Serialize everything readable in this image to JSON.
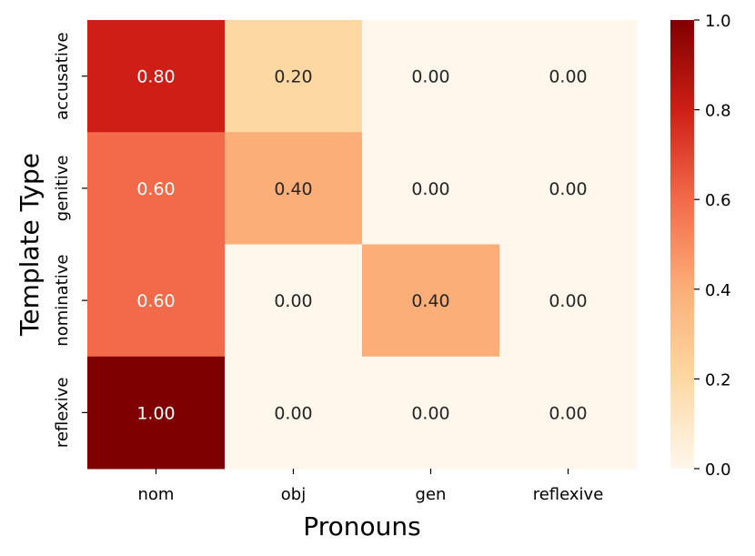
{
  "chart_data": {
    "type": "heatmap",
    "title": "",
    "xlabel": "Pronouns",
    "ylabel": "Template Type",
    "x_categories": [
      "nom",
      "obj",
      "gen",
      "reflexive"
    ],
    "y_categories": [
      "accusative",
      "genitive",
      "nominative",
      "reflexive"
    ],
    "values": [
      [
        0.8,
        0.2,
        0.0,
        0.0
      ],
      [
        0.6,
        0.4,
        0.0,
        0.0
      ],
      [
        0.6,
        0.0,
        0.4,
        0.0
      ],
      [
        1.0,
        0.0,
        0.0,
        0.0
      ]
    ],
    "value_labels": [
      [
        "0.80",
        "0.20",
        "0.00",
        "0.00"
      ],
      [
        "0.60",
        "0.40",
        "0.00",
        "0.00"
      ],
      [
        "0.60",
        "0.00",
        "0.40",
        "0.00"
      ],
      [
        "1.00",
        "0.00",
        "0.00",
        "0.00"
      ]
    ],
    "colormap": "OrRd",
    "vmin": 0.0,
    "vmax": 1.0,
    "colorbar_ticks": [
      0.0,
      0.2,
      0.4,
      0.6,
      0.8,
      1.0
    ],
    "colorbar_tick_labels": [
      "0.0",
      "0.2",
      "0.4",
      "0.6",
      "0.8",
      "1.0"
    ]
  }
}
